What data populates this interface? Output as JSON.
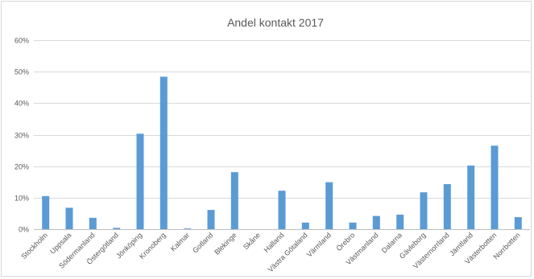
{
  "chart_data": {
    "type": "bar",
    "title": "Andel kontakt 2017",
    "xlabel": "",
    "ylabel": "",
    "ylim": [
      0,
      0.6
    ],
    "yticks": [
      0,
      0.1,
      0.2,
      0.3,
      0.4,
      0.5,
      0.6
    ],
    "ytick_labels": [
      "0%",
      "10%",
      "20%",
      "30%",
      "40%",
      "50%",
      "60%"
    ],
    "grid": true,
    "legend": "none",
    "bar_color": "#5b9bd5",
    "categories": [
      "Stockholm",
      "Uppsala",
      "Södermanland",
      "Östergötland",
      "Jönköping",
      "Kronoberg",
      "Kalmar",
      "Gotland",
      "Blekinge",
      "Skåne",
      "Halland",
      "Västra Götaland",
      "Värmland",
      "Örebro",
      "Västmanland",
      "Dalarna",
      "Gävleborg",
      "Västernorrland",
      "Jämtland",
      "Västerbotten",
      "Norrbotten"
    ],
    "values": [
      0.105,
      0.068,
      0.036,
      0.004,
      0.303,
      0.484,
      0.002,
      0.061,
      0.181,
      0.0,
      0.122,
      0.021,
      0.149,
      0.021,
      0.042,
      0.046,
      0.117,
      0.143,
      0.202,
      0.265,
      0.038
    ]
  }
}
